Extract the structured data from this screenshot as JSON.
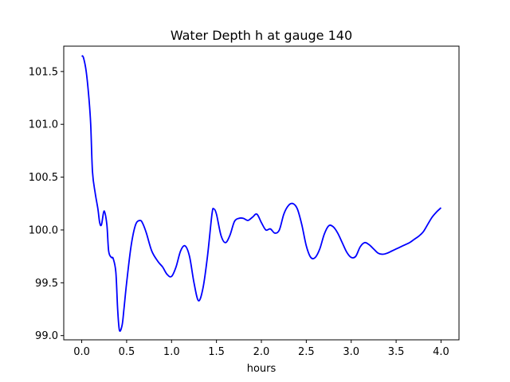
{
  "chart_data": {
    "type": "line",
    "title": "Water Depth h at gauge 140",
    "xlabel": "hours",
    "ylabel": "",
    "xlim": [
      -0.2,
      4.2
    ],
    "ylim": [
      98.96,
      101.74
    ],
    "xticks": [
      0.0,
      0.5,
      1.0,
      1.5,
      2.0,
      2.5,
      3.0,
      3.5,
      4.0
    ],
    "xtick_labels": [
      "0.0",
      "0.5",
      "1.0",
      "1.5",
      "2.0",
      "2.5",
      "3.0",
      "3.5",
      "4.0"
    ],
    "yticks": [
      99.0,
      99.5,
      100.0,
      100.5,
      101.0,
      101.5
    ],
    "ytick_labels": [
      "99.0",
      "99.5",
      "100.0",
      "100.5",
      "101.0",
      "101.5"
    ],
    "grid": false,
    "series": [
      {
        "color": "#0000ff",
        "x": [
          0.0,
          0.02,
          0.05,
          0.08,
          0.1,
          0.12,
          0.15,
          0.18,
          0.2,
          0.22,
          0.25,
          0.28,
          0.3,
          0.33,
          0.35,
          0.38,
          0.4,
          0.42,
          0.45,
          0.47,
          0.5,
          0.55,
          0.6,
          0.65,
          0.68,
          0.72,
          0.78,
          0.85,
          0.9,
          0.95,
          1.0,
          1.05,
          1.1,
          1.15,
          1.2,
          1.25,
          1.3,
          1.35,
          1.4,
          1.45,
          1.47,
          1.5,
          1.55,
          1.6,
          1.65,
          1.7,
          1.75,
          1.8,
          1.85,
          1.9,
          1.95,
          2.0,
          2.05,
          2.1,
          2.15,
          2.2,
          2.25,
          2.3,
          2.35,
          2.4,
          2.45,
          2.5,
          2.55,
          2.6,
          2.65,
          2.7,
          2.75,
          2.8,
          2.85,
          2.9,
          2.95,
          3.0,
          3.05,
          3.1,
          3.15,
          3.2,
          3.25,
          3.3,
          3.35,
          3.4,
          3.45,
          3.5,
          3.55,
          3.6,
          3.65,
          3.7,
          3.75,
          3.8,
          3.85,
          3.9,
          3.95,
          4.0
        ],
        "y": [
          101.65,
          101.63,
          101.5,
          101.25,
          101.0,
          100.55,
          100.35,
          100.2,
          100.07,
          100.05,
          100.18,
          100.05,
          99.8,
          99.74,
          99.73,
          99.6,
          99.25,
          99.05,
          99.1,
          99.25,
          99.5,
          99.85,
          100.05,
          100.09,
          100.06,
          99.97,
          99.8,
          99.7,
          99.65,
          99.58,
          99.56,
          99.65,
          99.8,
          99.85,
          99.75,
          99.5,
          99.33,
          99.45,
          99.75,
          100.15,
          100.2,
          100.15,
          99.95,
          99.88,
          99.95,
          100.08,
          100.11,
          100.11,
          100.09,
          100.12,
          100.15,
          100.07,
          100.0,
          100.01,
          99.97,
          100.0,
          100.15,
          100.23,
          100.25,
          100.2,
          100.05,
          99.85,
          99.74,
          99.74,
          99.82,
          99.96,
          100.04,
          100.03,
          99.97,
          99.88,
          99.79,
          99.74,
          99.75,
          99.84,
          99.88,
          99.86,
          99.82,
          99.78,
          99.77,
          99.78,
          99.8,
          99.82,
          99.84,
          99.86,
          99.88,
          99.91,
          99.94,
          99.98,
          100.05,
          100.12,
          100.17,
          100.21
        ]
      }
    ]
  }
}
